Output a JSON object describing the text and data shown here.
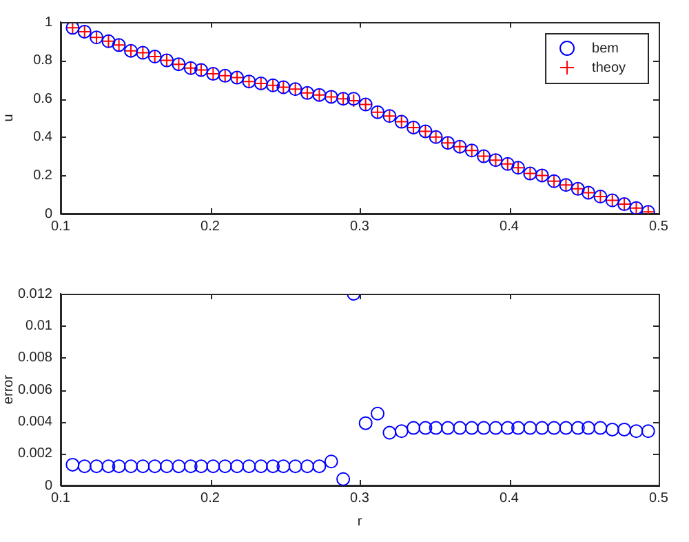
{
  "chart_data": [
    {
      "type": "scatter",
      "ylabel": "u",
      "x": [
        0.108,
        0.116,
        0.124,
        0.132,
        0.139,
        0.147,
        0.155,
        0.163,
        0.171,
        0.179,
        0.187,
        0.194,
        0.202,
        0.21,
        0.218,
        0.226,
        0.234,
        0.242,
        0.249,
        0.257,
        0.265,
        0.273,
        0.281,
        0.289,
        0.296,
        0.304,
        0.312,
        0.32,
        0.328,
        0.336,
        0.344,
        0.351,
        0.359,
        0.367,
        0.375,
        0.383,
        0.391,
        0.399,
        0.406,
        0.414,
        0.422,
        0.43,
        0.438,
        0.446,
        0.453,
        0.461,
        0.469,
        0.477,
        0.485,
        0.493
      ],
      "series": [
        {
          "name": "bem",
          "color": "#0000ff",
          "marker": "circle",
          "values": [
            0.97,
            0.95,
            0.92,
            0.9,
            0.88,
            0.85,
            0.84,
            0.82,
            0.8,
            0.78,
            0.76,
            0.75,
            0.73,
            0.72,
            0.71,
            0.69,
            0.68,
            0.67,
            0.66,
            0.65,
            0.63,
            0.62,
            0.61,
            0.6,
            0.6,
            0.57,
            0.53,
            0.51,
            0.48,
            0.45,
            0.43,
            0.4,
            0.37,
            0.35,
            0.33,
            0.3,
            0.28,
            0.26,
            0.24,
            0.21,
            0.2,
            0.17,
            0.15,
            0.13,
            0.11,
            0.09,
            0.07,
            0.05,
            0.03,
            0.01
          ]
        },
        {
          "name": "theoy",
          "color": "#ff0000",
          "marker": "cross",
          "values": [
            0.97,
            0.95,
            0.92,
            0.9,
            0.88,
            0.85,
            0.84,
            0.82,
            0.8,
            0.78,
            0.76,
            0.75,
            0.73,
            0.72,
            0.71,
            0.69,
            0.68,
            0.67,
            0.66,
            0.65,
            0.63,
            0.62,
            0.61,
            0.6,
            0.59,
            0.57,
            0.53,
            0.51,
            0.48,
            0.45,
            0.43,
            0.4,
            0.37,
            0.35,
            0.33,
            0.3,
            0.28,
            0.26,
            0.24,
            0.21,
            0.2,
            0.17,
            0.15,
            0.13,
            0.11,
            0.09,
            0.07,
            0.05,
            0.03,
            0.01
          ]
        }
      ],
      "xlim": [
        0.1,
        0.5
      ],
      "xticks": [
        0.1,
        0.2,
        0.3,
        0.4,
        0.5
      ],
      "ylim": [
        0,
        1
      ],
      "yticks": [
        0,
        0.2,
        0.4,
        0.6,
        0.8,
        1
      ],
      "grid": false,
      "legend": "top right"
    },
    {
      "type": "scatter",
      "xlabel": "r",
      "ylabel": "error",
      "x": [
        0.108,
        0.116,
        0.124,
        0.132,
        0.139,
        0.147,
        0.155,
        0.163,
        0.171,
        0.179,
        0.187,
        0.194,
        0.202,
        0.21,
        0.218,
        0.226,
        0.234,
        0.242,
        0.249,
        0.257,
        0.265,
        0.273,
        0.281,
        0.289,
        0.296,
        0.304,
        0.312,
        0.32,
        0.328,
        0.336,
        0.344,
        0.351,
        0.359,
        0.367,
        0.375,
        0.383,
        0.391,
        0.399,
        0.406,
        0.414,
        0.422,
        0.43,
        0.438,
        0.446,
        0.453,
        0.461,
        0.469,
        0.477,
        0.485,
        0.493
      ],
      "series": [
        {
          "color": "#0000ff",
          "marker": "circle",
          "values": [
            0.0013,
            0.0012,
            0.0012,
            0.0012,
            0.0012,
            0.0012,
            0.0012,
            0.0012,
            0.0012,
            0.0012,
            0.0012,
            0.0012,
            0.0012,
            0.0012,
            0.0012,
            0.0012,
            0.0012,
            0.0012,
            0.0012,
            0.0012,
            0.0012,
            0.0012,
            0.0015,
            0.0004,
            0.012,
            0.0039,
            0.0045,
            0.0033,
            0.0034,
            0.0036,
            0.0036,
            0.0036,
            0.0036,
            0.0036,
            0.0036,
            0.0036,
            0.0036,
            0.0036,
            0.0036,
            0.0036,
            0.0036,
            0.0036,
            0.0036,
            0.0036,
            0.0036,
            0.0036,
            0.0035,
            0.0035,
            0.0034,
            0.0034
          ]
        }
      ],
      "xlim": [
        0.1,
        0.5
      ],
      "xticks": [
        0.1,
        0.2,
        0.3,
        0.4,
        0.5
      ],
      "ylim": [
        0,
        0.012
      ],
      "yticks": [
        0,
        0.002,
        0.004,
        0.006,
        0.008,
        0.01,
        0.012
      ],
      "grid": false,
      "legend": false
    }
  ]
}
